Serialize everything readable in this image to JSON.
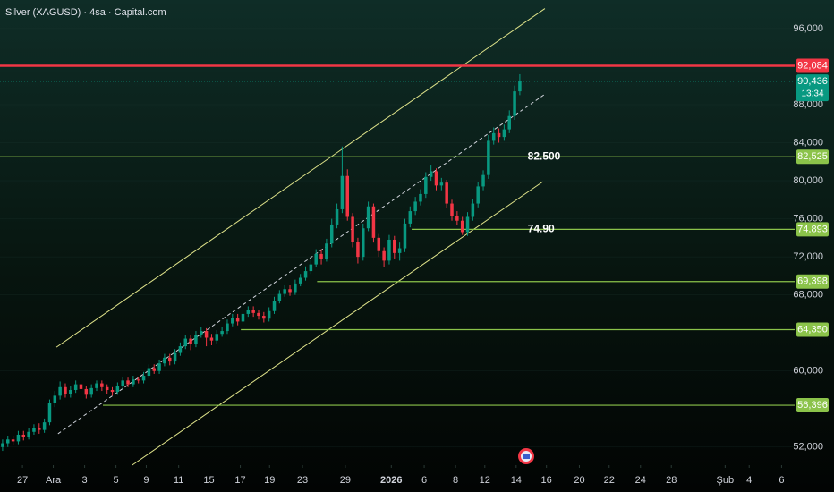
{
  "chart_data": {
    "type": "candlestick",
    "title": "Silver (XAGUSD) · 4sa · Capital.com",
    "up_color": "#089981",
    "down_color": "#f23645",
    "open": [
      52.0,
      52.4,
      52.8,
      52.6,
      53.3,
      53.1,
      53.6,
      54.0,
      53.8,
      54.6,
      56.6,
      57.4,
      58.3,
      57.6,
      58.0,
      58.6,
      58.1,
      57.5,
      58.2,
      58.7,
      58.3,
      58.0,
      57.8,
      58.4,
      59.0,
      58.6,
      59.1,
      59.0,
      59.5,
      60.3,
      60.0,
      60.8,
      61.4,
      61.0,
      61.9,
      62.6,
      63.4,
      62.8,
      63.8,
      64.2,
      63.5,
      63.2,
      63.9,
      64.2,
      65.0,
      65.6,
      65.2,
      66.0,
      66.4,
      66.1,
      65.8,
      65.5,
      66.3,
      67.4,
      68.1,
      68.6,
      68.3,
      69.2,
      69.8,
      70.5,
      71.2,
      72.3,
      71.8,
      73.4,
      75.4,
      77.0,
      80.5,
      76.2,
      73.6,
      72.0,
      75.0,
      77.3,
      74.0,
      72.6,
      71.6,
      73.8,
      72.4,
      72.9,
      75.5,
      76.8,
      77.8,
      78.6,
      80.4,
      81.0,
      79.5,
      79.8,
      77.6,
      76.3,
      75.8,
      74.6,
      76.2,
      77.6,
      79.4,
      80.6,
      84.2,
      85.0,
      84.6,
      85.4,
      86.8,
      89.4
    ],
    "high": [
      52.8,
      53.2,
      53.2,
      53.7,
      53.7,
      54.0,
      54.4,
      54.5,
      55.0,
      57.0,
      57.9,
      58.9,
      58.7,
      58.4,
      59.0,
      58.9,
      58.4,
      58.6,
      59.0,
      59.0,
      58.6,
      58.3,
      58.8,
      59.4,
      59.3,
      59.5,
      59.4,
      59.9,
      60.7,
      60.7,
      61.2,
      61.8,
      61.8,
      62.3,
      63.0,
      63.8,
      63.8,
      64.2,
      64.6,
      64.5,
      63.9,
      64.3,
      64.6,
      65.4,
      66.0,
      66.0,
      66.4,
      66.8,
      66.8,
      66.4,
      66.2,
      66.7,
      67.8,
      68.5,
      69.0,
      69.0,
      69.6,
      70.2,
      71.0,
      71.7,
      72.8,
      72.8,
      73.9,
      76.0,
      77.6,
      83.6,
      81.2,
      76.6,
      74.0,
      75.5,
      77.8,
      77.6,
      74.4,
      73.0,
      74.3,
      74.2,
      73.5,
      76.0,
      77.3,
      78.3,
      79.1,
      80.9,
      81.6,
      81.3,
      80.3,
      80.1,
      78.0,
      76.8,
      76.2,
      76.7,
      78.1,
      79.9,
      81.1,
      84.8,
      85.6,
      85.5,
      85.9,
      87.4,
      90.0,
      91.2
    ],
    "low": [
      51.6,
      52.0,
      52.2,
      52.3,
      52.7,
      52.8,
      53.3,
      53.4,
      53.5,
      54.3,
      56.2,
      57.0,
      57.2,
      57.2,
      57.7,
      57.7,
      57.1,
      57.2,
      57.9,
      57.9,
      57.6,
      57.4,
      57.5,
      58.1,
      58.3,
      58.3,
      58.7,
      58.7,
      59.2,
      59.7,
      59.7,
      60.5,
      60.6,
      60.7,
      61.6,
      62.3,
      62.2,
      62.5,
      63.5,
      62.6,
      62.7,
      62.9,
      63.6,
      63.9,
      64.7,
      64.8,
      64.9,
      65.7,
      65.7,
      65.4,
      65.1,
      65.2,
      66.0,
      67.1,
      67.8,
      67.9,
      68.0,
      68.9,
      69.5,
      70.2,
      70.9,
      71.2,
      71.5,
      73.0,
      75.0,
      76.6,
      75.8,
      73.0,
      71.3,
      71.6,
      74.7,
      73.5,
      72.0,
      70.9,
      71.2,
      71.8,
      71.6,
      72.5,
      75.1,
      76.4,
      77.4,
      78.2,
      80.0,
      79.0,
      79.0,
      77.1,
      75.8,
      75.3,
      74.3,
      74.2,
      75.8,
      77.2,
      79.0,
      80.2,
      83.8,
      84.0,
      84.2,
      85.0,
      86.4,
      89.0
    ],
    "close": [
      52.4,
      52.8,
      52.6,
      53.3,
      53.1,
      53.6,
      54.0,
      53.8,
      54.6,
      56.6,
      57.4,
      58.3,
      57.6,
      58.0,
      58.6,
      58.1,
      57.5,
      58.2,
      58.7,
      58.3,
      58.0,
      57.8,
      58.4,
      59.0,
      58.6,
      59.1,
      59.0,
      59.5,
      60.3,
      60.0,
      60.8,
      61.4,
      61.0,
      61.9,
      62.6,
      63.4,
      62.8,
      63.8,
      64.2,
      63.5,
      63.2,
      63.9,
      64.2,
      65.0,
      65.6,
      65.2,
      66.0,
      66.4,
      66.1,
      65.8,
      65.5,
      66.3,
      67.4,
      68.1,
      68.6,
      68.3,
      69.2,
      69.8,
      70.5,
      71.2,
      72.3,
      71.8,
      73.4,
      75.4,
      77.0,
      80.5,
      76.2,
      73.6,
      72.0,
      75.0,
      77.3,
      74.0,
      72.6,
      71.6,
      73.8,
      72.4,
      72.9,
      75.5,
      76.8,
      77.8,
      78.6,
      80.4,
      81.0,
      79.5,
      79.8,
      77.6,
      76.3,
      75.8,
      74.6,
      76.2,
      77.6,
      79.4,
      80.6,
      84.2,
      85.0,
      84.6,
      85.4,
      86.8,
      89.4,
      90.436
    ],
    "xlim": [
      -0.5,
      151.6
    ],
    "xticks": [
      {
        "value": 3.8,
        "label": "27"
      },
      {
        "value": 9.7,
        "label": "Ara"
      },
      {
        "value": 15.7,
        "label": "3"
      },
      {
        "value": 21.7,
        "label": "5"
      },
      {
        "value": 27.5,
        "label": "9"
      },
      {
        "value": 33.7,
        "label": "11"
      },
      {
        "value": 39.5,
        "label": "15"
      },
      {
        "value": 45.5,
        "label": "17"
      },
      {
        "value": 51.1,
        "label": "19"
      },
      {
        "value": 57.4,
        "label": "23"
      },
      {
        "value": 65.6,
        "label": "29"
      },
      {
        "value": 74.4,
        "label": "2026"
      },
      {
        "value": 80.7,
        "label": "6"
      },
      {
        "value": 86.7,
        "label": "8"
      },
      {
        "value": 92.3,
        "label": "12"
      },
      {
        "value": 98.3,
        "label": "14"
      },
      {
        "value": 104.1,
        "label": "16"
      },
      {
        "value": 110.4,
        "label": "20"
      },
      {
        "value": 116.1,
        "label": "22"
      },
      {
        "value": 122.1,
        "label": "24"
      },
      {
        "value": 128.0,
        "label": "28"
      },
      {
        "value": 138.3,
        "label": "Şub"
      },
      {
        "value": 142.9,
        "label": "4"
      },
      {
        "value": 149.1,
        "label": "6"
      }
    ],
    "ylim": [
      50.1,
      99.0
    ],
    "yticks": [
      {
        "value": 96,
        "label": "96,000"
      },
      {
        "value": 88,
        "label": "88,000"
      },
      {
        "value": 84,
        "label": "84,000"
      },
      {
        "value": 80,
        "label": "80,000"
      },
      {
        "value": 76,
        "label": "76,000"
      },
      {
        "value": 72,
        "label": "72,000"
      },
      {
        "value": 68,
        "label": "68,000"
      },
      {
        "value": 60,
        "label": "60,000"
      },
      {
        "value": 52,
        "label": "52,000"
      }
    ],
    "levels": [
      {
        "value": 92.084,
        "label": "92,084",
        "color": "#f23645",
        "from": -0.5
      },
      {
        "value": 82.525,
        "label": "82,525",
        "color": "#8bc34a",
        "from": -0.5
      },
      {
        "value": 74.893,
        "label": "74,893",
        "color": "#8bc34a",
        "from": 78.3
      },
      {
        "value": 69.398,
        "label": "69,398",
        "color": "#8bc34a",
        "from": 60.2
      },
      {
        "value": 64.35,
        "label": "64,350",
        "color": "#8bc34a",
        "from": 45.6
      },
      {
        "value": 56.396,
        "label": "56,396",
        "color": "#8bc34a",
        "from": 19.2
      }
    ],
    "last_price": {
      "value": 90.436,
      "label": "90,436",
      "countdown": "13:34",
      "color": "#089981"
    },
    "annotations": [
      {
        "value": 82.5,
        "label": "82.500",
        "x": 100.5
      },
      {
        "value": 74.9,
        "label": "74.90",
        "x": 100.5
      }
    ],
    "trendlines": [
      {
        "x": [
          10.3,
          103.8
        ],
        "y": [
          62.5,
          98.1
        ],
        "color": "#dfe38a",
        "dashed": false
      },
      {
        "x": [
          10.6,
          103.8
        ],
        "y": [
          53.4,
          89.1
        ],
        "color": "#d1d4dc",
        "dashed": true
      },
      {
        "x": [
          24.8,
          103.4
        ],
        "y": [
          50.1,
          79.9
        ],
        "color": "#dfe38a",
        "dashed": false
      }
    ]
  }
}
